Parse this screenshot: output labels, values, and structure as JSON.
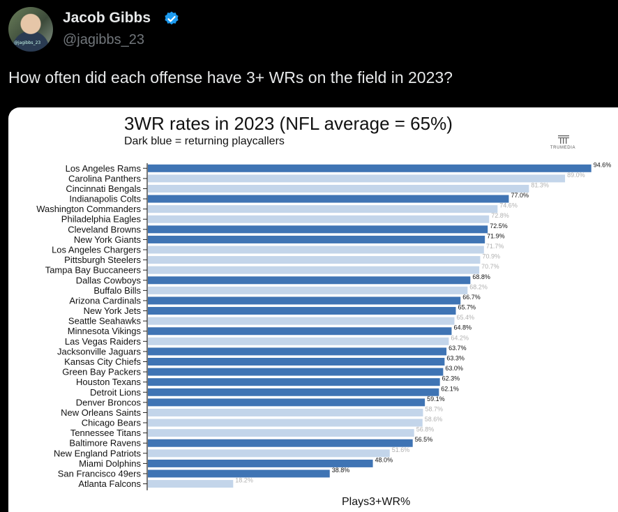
{
  "tweet": {
    "display_name": "Jacob Gibbs",
    "handle": "@jagibbs_23",
    "avatar_tag": "@jagibbs_23",
    "verified_icon": "verified-badge-icon",
    "text": "How often did each offense have 3+ WRs on the field in 2023?"
  },
  "logo": {
    "text": "TRUMEDIA",
    "icon": "trumedia-logo-icon"
  },
  "colors": {
    "returning": "#3f74b4",
    "new": "#c3d5ea",
    "label_returning": "#111111",
    "label_new": "#b0b0b0"
  },
  "chart_data": {
    "type": "bar",
    "orientation": "horizontal",
    "title": "3WR rates in 2023 (NFL average = 65%)",
    "subtitle": "Dark blue = returning playcallers",
    "xlabel": "Plays3+WR%",
    "ylabel": "",
    "xlim": [
      0,
      100
    ],
    "grid": false,
    "categories": [
      "Los Angeles Rams",
      "Carolina Panthers",
      "Cincinnati Bengals",
      "Indianapolis Colts",
      "Washington Commanders",
      "Philadelphia Eagles",
      "Cleveland Browns",
      "New York Giants",
      "Los Angeles Chargers",
      "Pittsburgh Steelers",
      "Tampa Bay Buccaneers",
      "Dallas Cowboys",
      "Buffalo Bills",
      "Arizona Cardinals",
      "New York Jets",
      "Seattle Seahawks",
      "Minnesota Vikings",
      "Las Vegas Raiders",
      "Jacksonville Jaguars",
      "Kansas City Chiefs",
      "Green Bay Packers",
      "Houston Texans",
      "Detroit Lions",
      "Denver Broncos",
      "New Orleans Saints",
      "Chicago Bears",
      "Tennessee Titans",
      "Baltimore Ravens",
      "New England Patriots",
      "Miami Dolphins",
      "San Francisco 49ers",
      "Atlanta Falcons"
    ],
    "values": [
      94.6,
      89.0,
      81.3,
      77.0,
      74.6,
      72.8,
      72.5,
      71.9,
      71.7,
      70.9,
      70.7,
      68.8,
      68.2,
      66.7,
      65.7,
      65.4,
      64.8,
      64.2,
      63.7,
      63.3,
      63.0,
      62.3,
      62.1,
      59.1,
      58.7,
      58.6,
      56.8,
      56.5,
      51.6,
      48.0,
      38.8,
      18.2
    ],
    "value_labels": [
      "94.6%",
      "89.0%",
      "81.3%",
      "77.0%",
      "74.6%",
      "72.8%",
      "72.5%",
      "71.9%",
      "71.7%",
      "70.9%",
      "70.7%",
      "68.8%",
      "68.2%",
      "66.7%",
      "65.7%",
      "65.4%",
      "64.8%",
      "64.2%",
      "63.7%",
      "63.3%",
      "63.0%",
      "62.3%",
      "62.1%",
      "59.1%",
      "58.7%",
      "58.6%",
      "56.8%",
      "56.5%",
      "51.6%",
      "48.0%",
      "38.8%",
      "18.2%"
    ],
    "returning_playcaller": [
      true,
      false,
      false,
      true,
      false,
      false,
      true,
      true,
      false,
      false,
      false,
      true,
      false,
      true,
      true,
      false,
      true,
      false,
      true,
      true,
      true,
      true,
      true,
      true,
      false,
      false,
      false,
      true,
      false,
      true,
      true,
      false
    ]
  }
}
